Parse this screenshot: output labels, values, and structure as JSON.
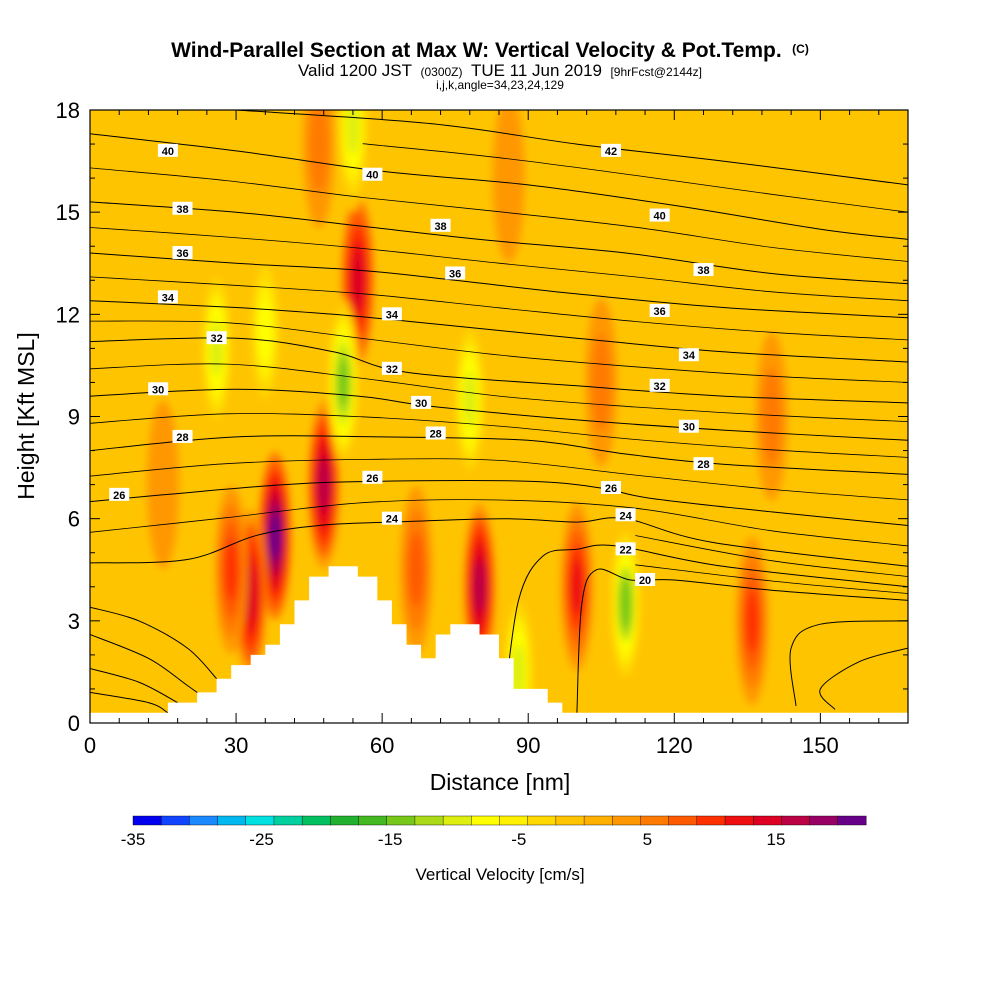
{
  "chart_data": {
    "type": "heatmap",
    "title": "Wind-Parallel Section at Max W: Vertical Velocity & Pot.Temp.",
    "title_badge": "(C)",
    "subtitle_parts": [
      "Valid 1200 JST",
      "(0300Z)",
      "TUE 11 Jun 2019",
      "[9hrFcst@2144z]"
    ],
    "subtitle2": "i,j,k,angle=34,23,24,129",
    "xlabel": "Distance [nm]",
    "ylabel": "Height [Kft MSL]",
    "xlim": [
      0,
      168
    ],
    "ylim": [
      0,
      18
    ],
    "x_ticks": [
      "0",
      "30",
      "60",
      "90",
      "120",
      "150"
    ],
    "y_ticks": [
      "0",
      "3",
      "6",
      "9",
      "12",
      "15",
      "18"
    ],
    "colorbar": {
      "label": "Vertical Velocity [cm/s]",
      "min": -35,
      "max": 22,
      "ticks": [
        "-35",
        "-25",
        "-15",
        "-5",
        "5",
        "15"
      ],
      "colors": [
        "#0000ee",
        "#1144ff",
        "#1a88ff",
        "#00b8f0",
        "#00e0e0",
        "#00d0a0",
        "#00c060",
        "#22b030",
        "#44b820",
        "#77c818",
        "#aada18",
        "#ddee10",
        "#ffff00",
        "#fff000",
        "#ffd800",
        "#ffc400",
        "#ffb000",
        "#ff9800",
        "#ff7a00",
        "#ff5a00",
        "#ff3000",
        "#ee1010",
        "#dd0022",
        "#bb0044",
        "#990066",
        "#660088"
      ]
    },
    "velocity_cells": [
      {
        "x": 38,
        "z": 5.5,
        "w": 22
      },
      {
        "x": 33,
        "z": 3.8,
        "w": 14
      },
      {
        "x": 29,
        "z": 4.5,
        "w": 11
      },
      {
        "x": 48,
        "z": 7.0,
        "w": 16
      },
      {
        "x": 55,
        "z": 13.0,
        "w": 15
      },
      {
        "x": 52,
        "z": 10.0,
        "w": -15
      },
      {
        "x": 26,
        "z": 11.0,
        "w": -9
      },
      {
        "x": 36,
        "z": 11.5,
        "w": -8
      },
      {
        "x": 78,
        "z": 9.5,
        "w": -9
      },
      {
        "x": 80,
        "z": 4.0,
        "w": 16
      },
      {
        "x": 67,
        "z": 4.5,
        "w": 8
      },
      {
        "x": 100,
        "z": 4.0,
        "w": 13
      },
      {
        "x": 110,
        "z": 3.5,
        "w": -14
      },
      {
        "x": 136,
        "z": 3.0,
        "w": 10
      },
      {
        "x": 105,
        "z": 10.0,
        "w": 6
      },
      {
        "x": 47,
        "z": 17.0,
        "w": 6
      },
      {
        "x": 54,
        "z": 17.5,
        "w": -9
      },
      {
        "x": 88,
        "z": 1.5,
        "w": -9
      },
      {
        "x": 86,
        "z": 16.0,
        "w": 4
      },
      {
        "x": 140,
        "z": 9.0,
        "w": 5
      },
      {
        "x": 15,
        "z": 7.0,
        "w": 3
      }
    ],
    "theta_contours": [
      {
        "label": "20",
        "points": [
          [
            100,
            0.3
          ],
          [
            101,
            3.5
          ],
          [
            104,
            4.5
          ],
          [
            111,
            4.2
          ],
          [
            120,
            4.2
          ],
          [
            140,
            3.9
          ],
          [
            168,
            3.6
          ]
        ]
      },
      {
        "label": "22",
        "points": [
          [
            85,
            0.5
          ],
          [
            88,
            3.6
          ],
          [
            93,
            4.9
          ],
          [
            100,
            5.1
          ],
          [
            108,
            5.2
          ],
          [
            130,
            4.6
          ],
          [
            168,
            4.0
          ]
        ]
      },
      {
        "label": "24",
        "points": [
          [
            0,
            4.7
          ],
          [
            20,
            4.8
          ],
          [
            34,
            5.5
          ],
          [
            47,
            5.8
          ],
          [
            62,
            5.9
          ],
          [
            85,
            6.0
          ],
          [
            100,
            5.9
          ],
          [
            110,
            6.0
          ],
          [
            128,
            5.3
          ],
          [
            168,
            4.6
          ]
        ]
      },
      {
        "label": "26",
        "points": [
          [
            0,
            6.5
          ],
          [
            15,
            6.7
          ],
          [
            40,
            7.0
          ],
          [
            60,
            7.1
          ],
          [
            90,
            7.1
          ],
          [
            105,
            6.9
          ],
          [
            115,
            6.6
          ],
          [
            140,
            6.2
          ],
          [
            168,
            5.8
          ]
        ]
      },
      {
        "label": "28",
        "points": [
          [
            0,
            8.0
          ],
          [
            30,
            8.4
          ],
          [
            60,
            8.4
          ],
          [
            90,
            8.3
          ],
          [
            110,
            7.9
          ],
          [
            130,
            7.6
          ],
          [
            168,
            7.3
          ]
        ]
      },
      {
        "label": "30",
        "points": [
          [
            0,
            9.6
          ],
          [
            30,
            9.8
          ],
          [
            55,
            9.6
          ],
          [
            70,
            9.3
          ],
          [
            100,
            8.9
          ],
          [
            130,
            8.6
          ],
          [
            168,
            8.3
          ]
        ]
      },
      {
        "label": "32",
        "points": [
          [
            0,
            11.2
          ],
          [
            30,
            11.3
          ],
          [
            50,
            10.9
          ],
          [
            65,
            10.3
          ],
          [
            100,
            9.9
          ],
          [
            130,
            9.6
          ],
          [
            168,
            9.4
          ]
        ]
      },
      {
        "label": "34",
        "points": [
          [
            0,
            12.4
          ],
          [
            30,
            12.2
          ],
          [
            50,
            12.0
          ],
          [
            65,
            11.8
          ],
          [
            100,
            11.3
          ],
          [
            130,
            10.9
          ],
          [
            168,
            10.6
          ]
        ]
      },
      {
        "label": "36",
        "points": [
          [
            0,
            13.8
          ],
          [
            30,
            13.5
          ],
          [
            55,
            13.3
          ],
          [
            75,
            13.0
          ],
          [
            100,
            12.6
          ],
          [
            130,
            12.2
          ],
          [
            168,
            11.9
          ]
        ]
      },
      {
        "label": "38",
        "points": [
          [
            0,
            15.3
          ],
          [
            30,
            15.0
          ],
          [
            55,
            14.6
          ],
          [
            80,
            14.2
          ],
          [
            110,
            13.8
          ],
          [
            140,
            13.2
          ],
          [
            168,
            12.9
          ]
        ]
      },
      {
        "label": "40",
        "points": [
          [
            0,
            17.3
          ],
          [
            30,
            16.8
          ],
          [
            60,
            16.2
          ],
          [
            90,
            15.8
          ],
          [
            120,
            15.2
          ],
          [
            150,
            14.5
          ],
          [
            168,
            14.2
          ]
        ]
      },
      {
        "label": "42",
        "points": [
          [
            30,
            18.0
          ],
          [
            70,
            17.6
          ],
          [
            100,
            17.0
          ],
          [
            130,
            16.5
          ],
          [
            168,
            15.8
          ]
        ]
      }
    ],
    "extra_contours": [
      [
        [
          0,
          3.4
        ],
        [
          10,
          3.0
        ],
        [
          20,
          2.2
        ],
        [
          26,
          1.3
        ]
      ],
      [
        [
          0,
          2.6
        ],
        [
          12,
          1.9
        ],
        [
          20,
          1.1
        ],
        [
          24,
          0.7
        ]
      ],
      [
        [
          0,
          1.6
        ],
        [
          10,
          1.2
        ],
        [
          18,
          0.6
        ]
      ],
      [
        [
          0,
          0.9
        ],
        [
          12,
          0.6
        ],
        [
          16,
          0.3
        ]
      ],
      [
        [
          168,
          3.0
        ],
        [
          150,
          2.9
        ],
        [
          144,
          2.2
        ],
        [
          145,
          0.5
        ]
      ],
      [
        [
          168,
          2.2
        ],
        [
          158,
          1.8
        ],
        [
          150,
          1.0
        ],
        [
          153,
          0.4
        ]
      ]
    ],
    "contour_labels": [
      {
        "label": "40",
        "x": 16,
        "z": 16.8
      },
      {
        "label": "40",
        "x": 58,
        "z": 16.1
      },
      {
        "label": "42",
        "x": 107,
        "z": 16.8
      },
      {
        "label": "38",
        "x": 19,
        "z": 15.1
      },
      {
        "label": "38",
        "x": 72,
        "z": 14.6
      },
      {
        "label": "40",
        "x": 117,
        "z": 14.9
      },
      {
        "label": "36",
        "x": 19,
        "z": 13.8
      },
      {
        "label": "36",
        "x": 75,
        "z": 13.2
      },
      {
        "label": "38",
        "x": 126,
        "z": 13.3
      },
      {
        "label": "34",
        "x": 16,
        "z": 12.5
      },
      {
        "label": "34",
        "x": 62,
        "z": 12.0
      },
      {
        "label": "36",
        "x": 117,
        "z": 12.1
      },
      {
        "label": "32",
        "x": 26,
        "z": 11.3
      },
      {
        "label": "32",
        "x": 62,
        "z": 10.4
      },
      {
        "label": "34",
        "x": 123,
        "z": 10.8
      },
      {
        "label": "30",
        "x": 14,
        "z": 9.8
      },
      {
        "label": "30",
        "x": 68,
        "z": 9.4
      },
      {
        "label": "32",
        "x": 117,
        "z": 9.9
      },
      {
        "label": "28",
        "x": 19,
        "z": 8.4
      },
      {
        "label": "28",
        "x": 71,
        "z": 8.5
      },
      {
        "label": "30",
        "x": 123,
        "z": 8.7
      },
      {
        "label": "26",
        "x": 6,
        "z": 6.7
      },
      {
        "label": "26",
        "x": 58,
        "z": 7.2
      },
      {
        "label": "28",
        "x": 126,
        "z": 7.6
      },
      {
        "label": "24",
        "x": 62,
        "z": 6.0
      },
      {
        "label": "26",
        "x": 107,
        "z": 6.9
      },
      {
        "label": "24",
        "x": 110,
        "z": 6.1
      },
      {
        "label": "22",
        "x": 110,
        "z": 5.1
      },
      {
        "label": "20",
        "x": 114,
        "z": 4.2
      }
    ],
    "terrain": [
      [
        0,
        0.3
      ],
      [
        16,
        0.3
      ],
      [
        16,
        0.6
      ],
      [
        22,
        0.6
      ],
      [
        22,
        0.9
      ],
      [
        26,
        0.9
      ],
      [
        26,
        1.3
      ],
      [
        29,
        1.3
      ],
      [
        29,
        1.7
      ],
      [
        33,
        1.7
      ],
      [
        33,
        2.0
      ],
      [
        36,
        2.0
      ],
      [
        36,
        2.3
      ],
      [
        39,
        2.3
      ],
      [
        39,
        2.9
      ],
      [
        42,
        2.9
      ],
      [
        42,
        3.6
      ],
      [
        45,
        3.6
      ],
      [
        45,
        4.3
      ],
      [
        49,
        4.3
      ],
      [
        49,
        4.6
      ],
      [
        55,
        4.6
      ],
      [
        55,
        4.3
      ],
      [
        59,
        4.3
      ],
      [
        59,
        3.6
      ],
      [
        62,
        3.6
      ],
      [
        62,
        2.9
      ],
      [
        65,
        2.9
      ],
      [
        65,
        2.3
      ],
      [
        68,
        2.3
      ],
      [
        68,
        1.9
      ],
      [
        71,
        1.9
      ],
      [
        71,
        2.6
      ],
      [
        74,
        2.6
      ],
      [
        74,
        2.9
      ],
      [
        80,
        2.9
      ],
      [
        80,
        2.6
      ],
      [
        84,
        2.6
      ],
      [
        84,
        1.9
      ],
      [
        87,
        1.9
      ],
      [
        87,
        1.0
      ],
      [
        94,
        1.0
      ],
      [
        94,
        0.6
      ],
      [
        97,
        0.6
      ],
      [
        97,
        0.3
      ],
      [
        168,
        0.3
      ]
    ]
  }
}
